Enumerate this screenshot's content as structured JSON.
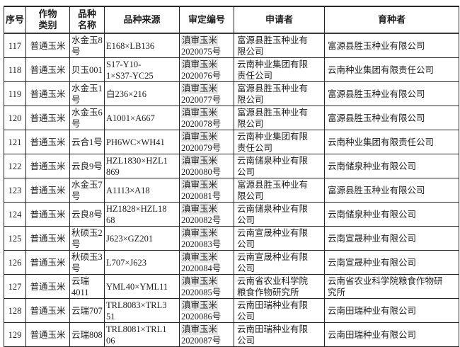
{
  "colors": {
    "border": "#262626",
    "text": "#1f1f1f",
    "approval_highlight": "#e9e9e9",
    "background": "#ffffff"
  },
  "table": {
    "headers": [
      "序号",
      "作物\n类别",
      "品种\n名称",
      "品种来源",
      "审定编号",
      "申请者",
      "育种者"
    ],
    "rows": [
      {
        "no": "117",
        "category": "普通玉米",
        "name": "水金玉8\n号",
        "source": "E168×LB136",
        "approval": [
          "滇审玉米",
          "2020075号"
        ],
        "applicant": "富源县胜玉种业有\n限公司",
        "breeder": "富源县胜玉种业有限公司"
      },
      {
        "no": "118",
        "category": "普通玉米",
        "name": "贝玉001",
        "source": "S17-Y10-\n1×S37-YC25",
        "approval": [
          "滇审玉米",
          "2020076号"
        ],
        "applicant": "云南种业集团有限\n责任公司",
        "breeder": "云南种业集团有限责任公司"
      },
      {
        "no": "119",
        "category": "普通玉米",
        "name": "水金玉1\n号",
        "source": "白236×216",
        "approval": [
          "滇审玉米",
          "2020077号"
        ],
        "applicant": "富源县胜玉种业有\n限公司",
        "breeder": "富源县胜玉种业有限公司"
      },
      {
        "no": "120",
        "category": "普通玉米",
        "name": "水金玉6\n号",
        "source": "A1001×A667",
        "approval": [
          "滇审玉米",
          "2020078号"
        ],
        "applicant": "富源县胜玉种业有\n限公司",
        "breeder": "富源县胜玉种业有限公司"
      },
      {
        "no": "121",
        "category": "普通玉米",
        "name": "云合1号",
        "source": "PH6WC×WH41",
        "approval": [
          "滇审玉米",
          "2020079号"
        ],
        "applicant": "云南种业集团有限\n责任公司",
        "breeder": "云南种业集团有限责任公司"
      },
      {
        "no": "122",
        "category": "普通玉米",
        "name": "云良9号",
        "source": "HZL1830×HZL1\n869",
        "approval": [
          "滇审玉米",
          "2020080号"
        ],
        "applicant": "云南储泉种业有限\n公司",
        "breeder": "云南储泉种业有限公司"
      },
      {
        "no": "123",
        "category": "普通玉米",
        "name": "水金玉7\n号",
        "source": "A1113×A18",
        "approval": [
          "滇审玉米",
          "2020081号"
        ],
        "applicant": "富源县胜玉种业有\n限公司",
        "breeder": "富源县胜玉种业有限公司"
      },
      {
        "no": "124",
        "category": "普通玉米",
        "name": "云良8号",
        "source": "HZ1828×HZL18\n68",
        "approval": [
          "滇审玉米",
          "2020082号"
        ],
        "applicant": "云南储泉种业有限\n公司",
        "breeder": "云南储泉种业有限公司"
      },
      {
        "no": "125",
        "category": "普通玉米",
        "name": "秋硕玉2\n号",
        "source": "J623×GZ201",
        "approval": [
          "滇审玉米",
          "2020083号"
        ],
        "applicant": "云南宣晟种业有限\n公司",
        "breeder": "云南宣晟种业有限公司"
      },
      {
        "no": "126",
        "category": "普通玉米",
        "name": "秋硕玉3\n号",
        "source": "L707×J623",
        "approval": [
          "滇审玉米",
          "2020084号"
        ],
        "applicant": "云南宣晟种业有限\n公司",
        "breeder": "云南宣晟种业有限公司"
      },
      {
        "no": "127",
        "category": "普通玉米",
        "name": "云瑞4011",
        "source": "YML40×YML11",
        "approval": [
          "滇审玉米",
          "2020085号"
        ],
        "applicant": "云南省农业科学院\n粮食作物研究所",
        "breeder": "云南省农业科学院粮食作物研\n究所"
      },
      {
        "no": "128",
        "category": "普通玉米",
        "name": "云瑞707",
        "source": "TRL8083×TRL3\n51",
        "approval": [
          "滇审玉米",
          "2020086号"
        ],
        "applicant": "云南田瑞种业有限\n公司",
        "breeder": "云南田瑞种业有限公司"
      },
      {
        "no": "129",
        "category": "普通玉米",
        "name": "云瑞808",
        "source": "TRL8081×TRL1\n06",
        "approval": [
          "滇审玉米",
          "2020087号"
        ],
        "applicant": "云南田瑞种业有限\n公司",
        "breeder": "云南田瑞种业有限公司"
      }
    ]
  }
}
